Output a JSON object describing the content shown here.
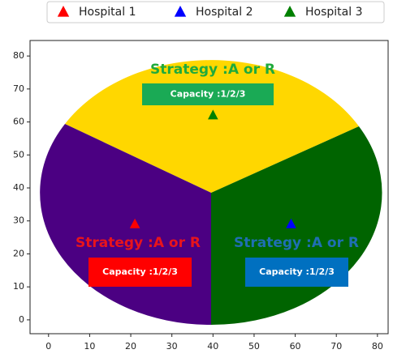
{
  "chart_data": {
    "type": "scatter",
    "series": [
      {
        "name": "Hospital 1",
        "color": "#ff0000",
        "x": [
          21
        ],
        "values": [
          29
        ]
      },
      {
        "name": "Hospital 2",
        "color": "#0000ff",
        "x": [
          59
        ],
        "values": [
          29
        ]
      },
      {
        "name": "Hospital 3",
        "color": "#008000",
        "x": [
          40
        ],
        "values": [
          62
        ]
      }
    ],
    "annotations": [
      {
        "title": "Strategy :A or R",
        "label": "Capacity :1/2/3",
        "title_color": "#1faa3c",
        "box_color": "#1aaa55"
      },
      {
        "title": "Strategy :A or R",
        "label": "Capacity :1/2/3",
        "title_color": "#e8141c",
        "box_color": "#ff0000"
      },
      {
        "title": "Strategy :A or R",
        "label": "Capacity :1/2/3",
        "title_color": "#1f6fb4",
        "box_color": "#0070c0"
      }
    ],
    "xlim": [
      -4.5,
      82.6
    ],
    "ylim": [
      -4.2,
      84.7
    ],
    "xticks": [
      0,
      10,
      20,
      30,
      40,
      50,
      60,
      70,
      80
    ],
    "yticks": [
      0,
      10,
      20,
      30,
      40,
      50,
      60,
      70,
      80
    ],
    "legend": "top"
  }
}
